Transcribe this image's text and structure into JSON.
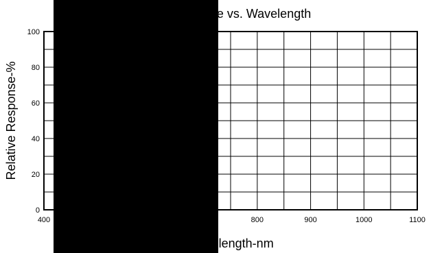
{
  "chart_data": {
    "type": "line",
    "title": "Relative Response vs. Wavelength",
    "xlabel": "Wavelength-nm",
    "ylabel": "Relative Response-%",
    "xlim": [
      400,
      1100
    ],
    "ylim": [
      0,
      100
    ],
    "x_ticks": [
      "400",
      "800",
      "900",
      "1000",
      "1100"
    ],
    "y_ticks": [
      "0",
      "20",
      "40",
      "60",
      "80",
      "100"
    ],
    "x_grid_step": 50,
    "y_grid_step": 10,
    "grid": true,
    "series": [],
    "occlusion": {
      "color": "#000000"
    }
  }
}
